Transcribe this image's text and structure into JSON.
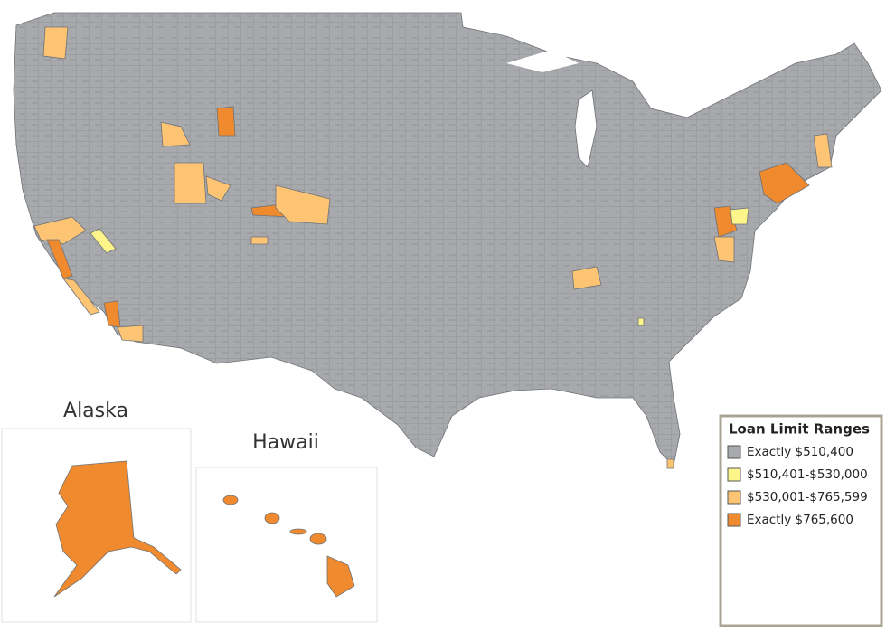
{
  "labels": {
    "alaska": "Alaska",
    "hawaii": "Hawaii"
  },
  "legend": {
    "title": "Loan Limit Ranges",
    "items": [
      {
        "label": "Exactly $510,400",
        "color": "#a7a9ac"
      },
      {
        "label": "$510,401-$530,000",
        "color": "#fdf58a"
      },
      {
        "label": "$530,001-$765,599",
        "color": "#fcc473"
      },
      {
        "label": "Exactly $765,600",
        "color": "#ef8a2f"
      }
    ]
  }
}
